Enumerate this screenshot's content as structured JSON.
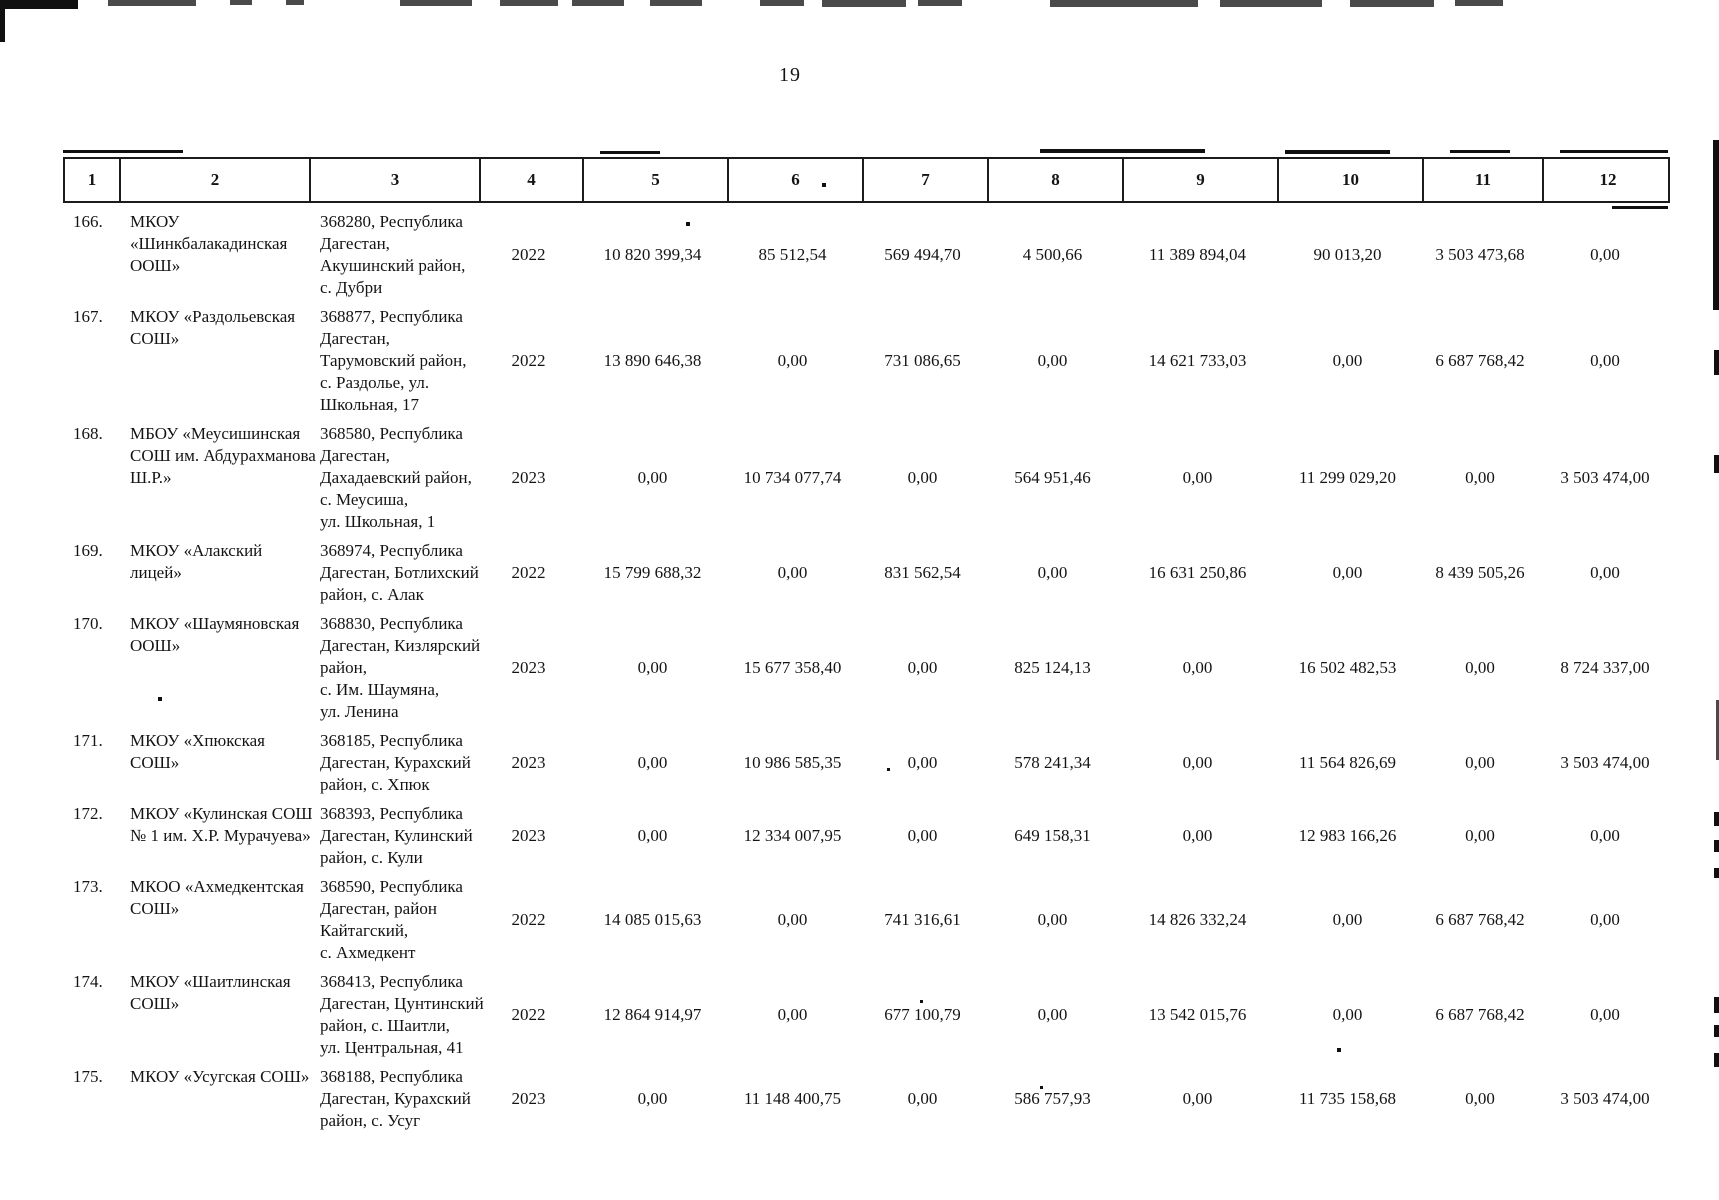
{
  "page": {
    "number": "19"
  },
  "table": {
    "columns": [
      "1",
      "2",
      "3",
      "4",
      "5",
      "6",
      "7",
      "8",
      "9",
      "10",
      "11",
      "12"
    ],
    "rows": [
      {
        "num": "166.",
        "name": "МКОУ\n«Шинкбалакадинская\nООШ»",
        "address": "368280, Республика\nДагестан,\nАкушинский район,\nс. Дубри",
        "year": "2022",
        "values": [
          "10 820 399,34",
          "85 512,54",
          "569 494,70",
          "4 500,66",
          "11 389 894,04",
          "90 013,20",
          "3 503 473,68",
          "0,00"
        ]
      },
      {
        "num": "167.",
        "name": "МКОУ «Раздольевская\nСОШ»",
        "address": "368877, Республика\nДагестан,\nТарумовский район,\nс. Раздолье, ул.\nШкольная, 17",
        "year": "2022",
        "values": [
          "13 890 646,38",
          "0,00",
          "731 086,65",
          "0,00",
          "14 621 733,03",
          "0,00",
          "6 687 768,42",
          "0,00"
        ]
      },
      {
        "num": "168.",
        "name": "МБОУ «Меусишинская\nСОШ им. Абдурахманова\nШ.Р.»",
        "address": "368580, Республика\nДагестан,\nДахадаевский район,\nс. Меусиша,\nул. Школьная, 1",
        "year": "2023",
        "values": [
          "0,00",
          "10 734 077,74",
          "0,00",
          "564 951,46",
          "0,00",
          "11 299 029,20",
          "0,00",
          "3 503 474,00"
        ]
      },
      {
        "num": "169.",
        "name": "МКОУ «Алакский\nлицей»",
        "address": "368974, Республика\nДагестан, Ботлихский\nрайон, с. Алак",
        "year": "2022",
        "values": [
          "15 799 688,32",
          "0,00",
          "831 562,54",
          "0,00",
          "16 631 250,86",
          "0,00",
          "8 439 505,26",
          "0,00"
        ]
      },
      {
        "num": "170.",
        "name": "МКОУ «Шаумяновская\nООШ»",
        "address": "368830, Республика\nДагестан, Кизлярский\nрайон,\nс. Им. Шаумяна,\nул. Ленина",
        "year": "2023",
        "values": [
          "0,00",
          "15 677 358,40",
          "0,00",
          "825 124,13",
          "0,00",
          "16 502 482,53",
          "0,00",
          "8 724 337,00"
        ]
      },
      {
        "num": "171.",
        "name": "МКОУ «Хпюкская\nСОШ»",
        "address": "368185, Республика\nДагестан, Курахский\nрайон, с. Хпюк",
        "year": "2023",
        "values": [
          "0,00",
          "10 986 585,35",
          "0,00",
          "578 241,34",
          "0,00",
          "11 564 826,69",
          "0,00",
          "3 503 474,00"
        ]
      },
      {
        "num": "172.",
        "name": "МКОУ «Кулинская СОШ\n№ 1 им. Х.Р. Мурачуева»",
        "address": "368393, Республика\nДагестан, Кулинский\nрайон, с. Кули",
        "year": "2023",
        "values": [
          "0,00",
          "12 334 007,95",
          "0,00",
          "649 158,31",
          "0,00",
          "12 983 166,26",
          "0,00",
          "0,00"
        ]
      },
      {
        "num": "173.",
        "name": "МКОО «Ахмедкентская\nСОШ»",
        "address": "368590, Республика\nДагестан, район\nКайтагский,\nс. Ахмедкент",
        "year": "2022",
        "values": [
          "14 085 015,63",
          "0,00",
          "741 316,61",
          "0,00",
          "14 826 332,24",
          "0,00",
          "6 687 768,42",
          "0,00"
        ]
      },
      {
        "num": "174.",
        "name": "МКОУ «Шаитлинская\nСОШ»",
        "address": "368413, Республика\nДагестан, Цунтинский\nрайон, с. Шаитли,\nул. Центральная, 41",
        "year": "2022",
        "values": [
          "12 864 914,97",
          "0,00",
          "677 100,79",
          "0,00",
          "13 542 015,76",
          "0,00",
          "6 687 768,42",
          "0,00"
        ]
      },
      {
        "num": "175.",
        "name": "МКОУ «Усугская СОШ»",
        "address": "368188, Республика\nДагестан, Курахский\nрайон, с. Усуг",
        "year": "2023",
        "values": [
          "0,00",
          "11 148 400,75",
          "0,00",
          "586 757,93",
          "0,00",
          "11 735 158,68",
          "0,00",
          "3 503 474,00"
        ]
      }
    ]
  }
}
